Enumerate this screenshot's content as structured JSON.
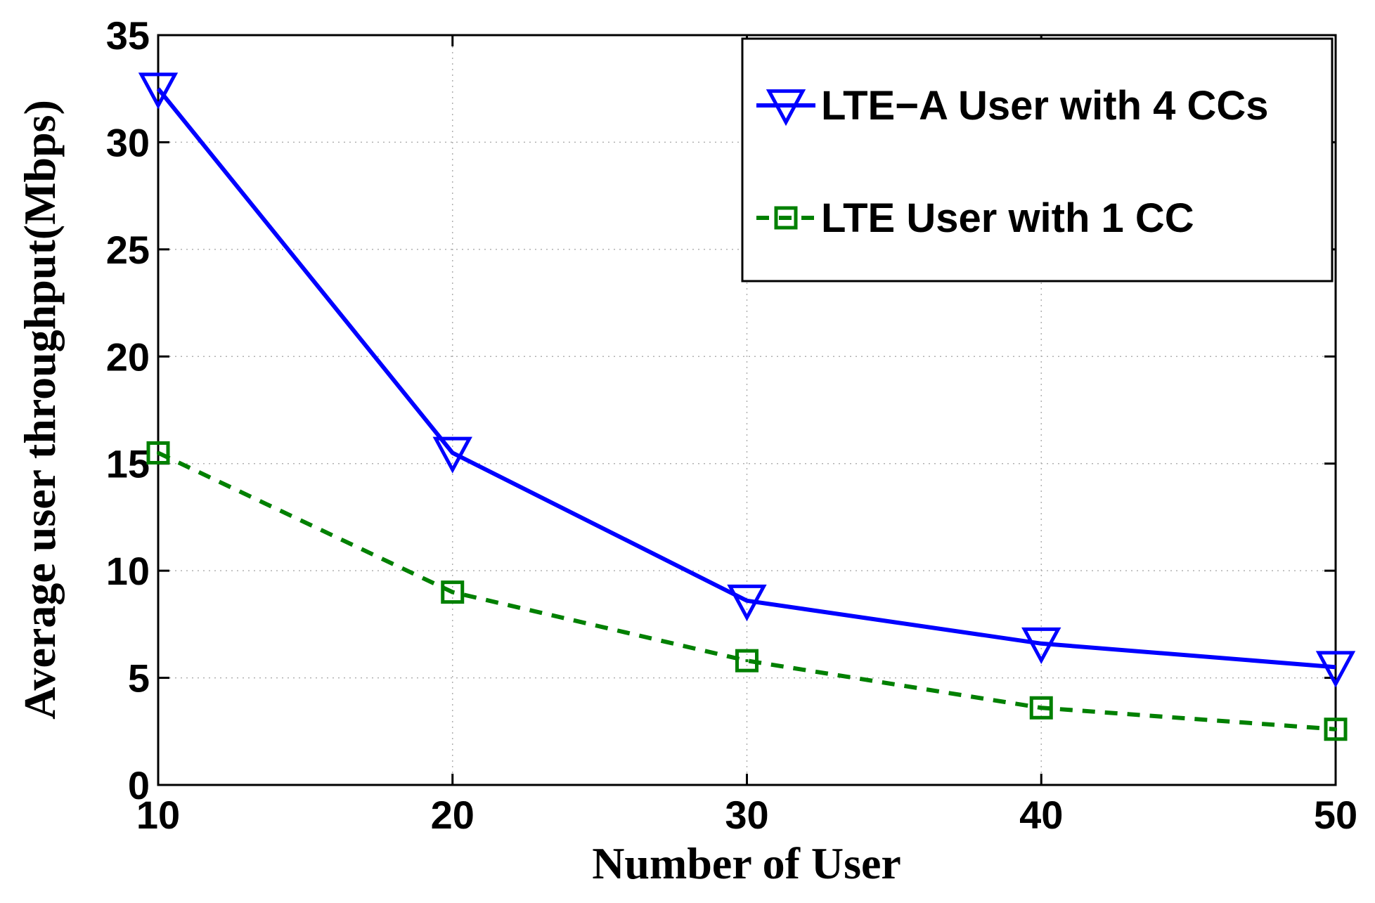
{
  "chart_data": {
    "type": "line",
    "title": "",
    "xlabel": "Number of User",
    "ylabel": "Average user throughput(Mbps)",
    "x": [
      10,
      20,
      30,
      40,
      50
    ],
    "xlim": [
      10,
      50
    ],
    "ylim": [
      0,
      35
    ],
    "xticks": [
      "10",
      "20",
      "30",
      "40",
      "50"
    ],
    "yticks": [
      "0",
      "5",
      "10",
      "15",
      "20",
      "25",
      "30",
      "35"
    ],
    "grid": true,
    "legend_position": "top-right",
    "series": [
      {
        "name": "LTE−A User with 4 CCs",
        "values": [
          32.5,
          15.5,
          8.6,
          6.6,
          5.5
        ],
        "color": "#0000ff",
        "line_style": "solid",
        "marker": "triangle-down"
      },
      {
        "name": "LTE User with 1 CC",
        "values": [
          15.5,
          9.0,
          5.8,
          3.6,
          2.6
        ],
        "color": "#008000",
        "line_style": "dashed",
        "marker": "square"
      }
    ]
  }
}
